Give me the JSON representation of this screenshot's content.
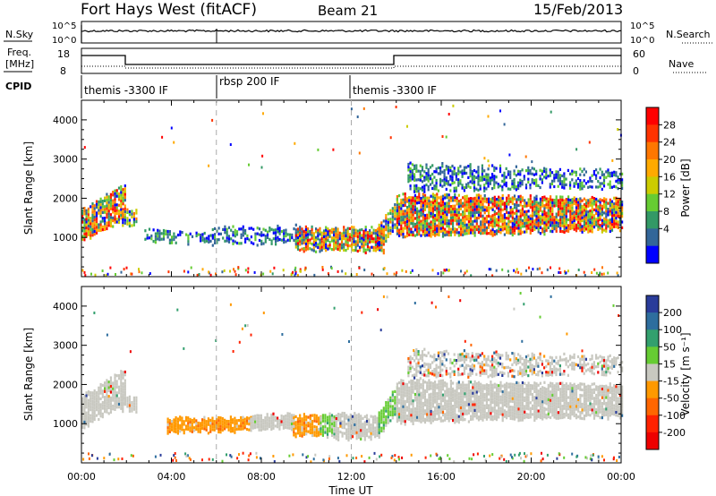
{
  "header": {
    "station": "Fort Hays West (fitACF)",
    "beam": "Beam 21",
    "date": "15/Feb/2013"
  },
  "top_panels": {
    "nsky_label": "N.Sky",
    "nsky_top": "10^5",
    "nsky_bottom": "10^0",
    "nsearch_label": "N.Search",
    "nsearch_top": "10^5",
    "nsearch_bottom": "10^0",
    "freq_label_line1": "Freq.",
    "freq_label_line2": "[MHz]",
    "freq_ticks": [
      "18",
      "8"
    ],
    "nave_ticks": [
      "60",
      "0"
    ],
    "nave_label": "Nave",
    "cpid_label": "CPID",
    "cpid_segments": [
      {
        "label": "themis -3300 IF",
        "start_h": 0,
        "end_h": 6
      },
      {
        "label": "rbsp 200 IF",
        "start_h": 6,
        "end_h": 12
      },
      {
        "label": "themis -3300 IF",
        "start_h": 12,
        "end_h": 24
      }
    ]
  },
  "power_colorbar": {
    "title": "Power [dB]",
    "ticks": [
      "28",
      "24",
      "20",
      "16",
      "12",
      "8",
      "4"
    ],
    "colors": [
      "#ff0000",
      "#ff3300",
      "#ff7700",
      "#ffaa00",
      "#cccc00",
      "#66cc33",
      "#339966",
      "#336699",
      "#0000ff"
    ]
  },
  "velocity_colorbar": {
    "title": "Velocity [m s⁻¹]",
    "ticks": [
      "200",
      "100",
      "50",
      "15",
      "-15",
      "-50",
      "-100",
      "-200"
    ],
    "colors": [
      "#2a3c9a",
      "#2e6e9e",
      "#33a06e",
      "#66cc33",
      "#c8c8c0",
      "#ff9900",
      "#ff6600",
      "#ff2200",
      "#ee0000"
    ]
  },
  "chart_data": [
    {
      "type": "heatmap",
      "title": "Power",
      "ylabel": "Slant Range [km]",
      "xlabel": "",
      "ylim": [
        0,
        4500
      ],
      "yticks": [
        1000,
        2000,
        3000,
        4000
      ],
      "xlim_hours": [
        0,
        24
      ],
      "xticks": [
        "00:00",
        "04:00",
        "08:00",
        "12:00",
        "16:00",
        "20:00",
        "00:00"
      ],
      "scatter_bands": [
        {
          "t0": 0.0,
          "t1": 1.9,
          "r0_start": 900,
          "r0_end": 1500,
          "r1_start": 1700,
          "r1_end": 2400,
          "level": "strong"
        },
        {
          "t0": 1.8,
          "t1": 2.4,
          "r0_start": 1350,
          "r0_end": 1350,
          "r1_start": 1700,
          "r1_end": 1700,
          "level": "medium"
        },
        {
          "t0": 2.8,
          "t1": 5.8,
          "r0_start": 950,
          "r0_end": 850,
          "r1_start": 1200,
          "r1_end": 1100,
          "level": "weak"
        },
        {
          "t0": 5.8,
          "t1": 9.5,
          "r0_start": 850,
          "r0_end": 900,
          "r1_start": 1250,
          "r1_end": 1300,
          "level": "weak"
        },
        {
          "t0": 9.5,
          "t1": 13.4,
          "r0_start": 700,
          "r0_end": 650,
          "r1_start": 1250,
          "r1_end": 1250,
          "level": "strong"
        },
        {
          "t0": 13.2,
          "t1": 14.0,
          "r0_start": 750,
          "r0_end": 1300,
          "r1_start": 1300,
          "r1_end": 2000,
          "level": "medium"
        },
        {
          "t0": 14.0,
          "t1": 24.0,
          "r0_start": 1050,
          "r0_end": 1200,
          "r1_start": 2100,
          "r1_end": 2000,
          "level": "strong"
        },
        {
          "t0": 14.5,
          "t1": 24.0,
          "r0_start": 2200,
          "r0_end": 2300,
          "r1_start": 2900,
          "r1_end": 2700,
          "level": "weak"
        }
      ]
    },
    {
      "type": "heatmap",
      "title": "Velocity",
      "ylabel": "Slant Range [km]",
      "xlabel": "Time UT",
      "ylim": [
        0,
        4500
      ],
      "yticks": [
        1000,
        2000,
        3000,
        4000
      ],
      "xlim_hours": [
        0,
        24
      ],
      "xticks": [
        "00:00",
        "04:00",
        "08:00",
        "12:00",
        "16:00",
        "20:00",
        "00:00"
      ],
      "scatter_bands": [
        {
          "t0": 0.0,
          "t1": 1.9,
          "r0_start": 900,
          "r0_end": 1500,
          "r1_start": 1700,
          "r1_end": 2400,
          "class": "ground"
        },
        {
          "t0": 1.8,
          "t1": 2.4,
          "r0_start": 1350,
          "r0_end": 1350,
          "r1_start": 1700,
          "r1_end": 1700,
          "class": "ground"
        },
        {
          "t0": 3.8,
          "t1": 7.5,
          "r0_start": 800,
          "r0_end": 850,
          "r1_start": 1150,
          "r1_end": 1150,
          "class": "negative"
        },
        {
          "t0": 7.5,
          "t1": 9.4,
          "r0_start": 850,
          "r0_end": 900,
          "r1_start": 1200,
          "r1_end": 1250,
          "class": "ground"
        },
        {
          "t0": 9.4,
          "t1": 10.6,
          "r0_start": 700,
          "r0_end": 750,
          "r1_start": 1200,
          "r1_end": 1250,
          "class": "negative"
        },
        {
          "t0": 10.6,
          "t1": 11.2,
          "r0_start": 700,
          "r0_end": 700,
          "r1_start": 1250,
          "r1_end": 1250,
          "class": "positive"
        },
        {
          "t0": 11.2,
          "t1": 13.2,
          "r0_start": 650,
          "r0_end": 650,
          "r1_start": 1250,
          "r1_end": 1250,
          "class": "ground"
        },
        {
          "t0": 13.2,
          "t1": 14.0,
          "r0_start": 700,
          "r0_end": 1300,
          "r1_start": 1300,
          "r1_end": 2000,
          "class": "positive"
        },
        {
          "t0": 14.0,
          "t1": 24.0,
          "r0_start": 1050,
          "r0_end": 1200,
          "r1_start": 2100,
          "r1_end": 2000,
          "class": "ground"
        },
        {
          "t0": 14.5,
          "t1": 24.0,
          "r0_start": 2200,
          "r0_end": 2300,
          "r1_start": 2900,
          "r1_end": 2700,
          "class": "mixed"
        }
      ]
    }
  ]
}
